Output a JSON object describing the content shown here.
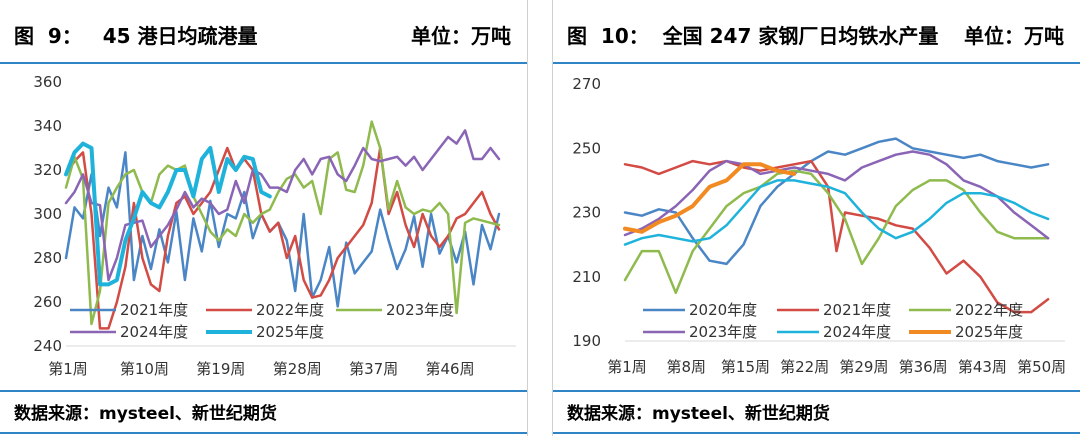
{
  "left": {
    "title": "图  9：   45 港日均疏港量",
    "unit": "单位：万吨",
    "source": "数据来源：mysteel、新世纪期货"
  },
  "right": {
    "title": "图  10：  全国 247 家钢厂日均铁水产量",
    "unit": "单位：万吨",
    "source": "数据来源：mysteel、新世纪期货"
  },
  "chart_data": [
    {
      "type": "line",
      "title": "",
      "xlabel": "",
      "ylabel": "",
      "ylim": [
        240,
        360
      ],
      "y_ticks": [
        240,
        260,
        280,
        300,
        320,
        340,
        360
      ],
      "x_ticks": [
        1,
        10,
        19,
        28,
        37,
        46
      ],
      "x_tick_labels": [
        "第1周",
        "第10周",
        "第19周",
        "第28周",
        "第37周",
        "第46周"
      ],
      "x_range": [
        1,
        54
      ],
      "grid": false,
      "legend_position": "bottom-left",
      "series": [
        {
          "name": "2021年度",
          "color": "#4a86c6",
          "width": 2.5,
          "x": [
            1,
            2,
            3,
            4,
            5,
            6,
            7,
            8,
            9,
            10,
            11,
            12,
            13,
            14,
            15,
            16,
            17,
            18,
            19,
            20,
            21,
            22,
            23,
            24,
            25,
            26,
            27,
            28,
            29,
            30,
            31,
            32,
            33,
            34,
            35,
            36,
            37,
            38,
            39,
            40,
            41,
            42,
            43,
            44,
            45,
            46,
            47,
            48,
            49,
            50,
            51,
            52
          ],
          "y": [
            280,
            303,
            298,
            318,
            290,
            312,
            303,
            328,
            270,
            290,
            275,
            293,
            278,
            301,
            270,
            298,
            283,
            306,
            285,
            300,
            298,
            310,
            289,
            300,
            292,
            296,
            288,
            265,
            300,
            262,
            270,
            285,
            258,
            287,
            273,
            278,
            283,
            302,
            288,
            275,
            284,
            299,
            276,
            300,
            282,
            290,
            278,
            292,
            268,
            295,
            284,
            300
          ]
        },
        {
          "name": "2022年度",
          "color": "#d24b44",
          "width": 2.5,
          "x": [
            1,
            2,
            3,
            4,
            5,
            6,
            7,
            8,
            9,
            10,
            11,
            12,
            13,
            14,
            15,
            16,
            17,
            18,
            19,
            20,
            21,
            22,
            23,
            24,
            25,
            26,
            27,
            28,
            29,
            30,
            31,
            32,
            33,
            34,
            35,
            36,
            37,
            38,
            39,
            40,
            41,
            42,
            43,
            44,
            45,
            46,
            47,
            48,
            49,
            50,
            51,
            52
          ],
          "y": [
            318,
            324,
            328,
            300,
            248,
            248,
            260,
            276,
            305,
            280,
            268,
            265,
            290,
            305,
            308,
            300,
            305,
            310,
            320,
            330,
            320,
            325,
            320,
            300,
            292,
            296,
            280,
            290,
            270,
            262,
            263,
            270,
            280,
            285,
            290,
            295,
            305,
            330,
            300,
            310,
            295,
            285,
            300,
            290,
            285,
            290,
            298,
            300,
            305,
            310,
            300,
            293
          ]
        },
        {
          "name": "2023年度",
          "color": "#8fba4e",
          "width": 2.5,
          "x": [
            1,
            2,
            3,
            4,
            5,
            6,
            7,
            8,
            9,
            10,
            11,
            12,
            13,
            14,
            15,
            16,
            17,
            18,
            19,
            20,
            21,
            22,
            23,
            24,
            25,
            26,
            27,
            28,
            29,
            30,
            31,
            32,
            33,
            34,
            35,
            36,
            37,
            38,
            39,
            40,
            41,
            42,
            43,
            44,
            45,
            46,
            47,
            48,
            49,
            50,
            51,
            52
          ],
          "y": [
            312,
            326,
            316,
            250,
            265,
            305,
            312,
            318,
            320,
            310,
            305,
            318,
            322,
            320,
            322,
            308,
            300,
            292,
            288,
            293,
            290,
            300,
            296,
            300,
            302,
            310,
            316,
            318,
            312,
            315,
            300,
            325,
            328,
            311,
            310,
            322,
            342,
            330,
            302,
            315,
            303,
            300,
            302,
            301,
            305,
            300,
            255,
            296,
            298,
            297,
            296,
            295
          ]
        },
        {
          "name": "2024年度",
          "color": "#8a65b5",
          "width": 2.5,
          "x": [
            1,
            2,
            3,
            4,
            5,
            6,
            7,
            8,
            9,
            10,
            11,
            12,
            13,
            14,
            15,
            16,
            17,
            18,
            19,
            20,
            21,
            22,
            23,
            24,
            25,
            26,
            27,
            28,
            29,
            30,
            31,
            32,
            33,
            34,
            35,
            36,
            37,
            38,
            39,
            40,
            41,
            42,
            43,
            44,
            45,
            46,
            47,
            48,
            49,
            50,
            51,
            52
          ],
          "y": [
            305,
            310,
            318,
            305,
            304,
            270,
            280,
            295,
            296,
            297,
            285,
            290,
            295,
            302,
            310,
            303,
            307,
            305,
            300,
            302,
            315,
            305,
            320,
            318,
            312,
            312,
            310,
            320,
            325,
            318,
            325,
            326,
            318,
            315,
            322,
            330,
            325,
            324,
            325,
            326,
            322,
            326,
            320,
            325,
            330,
            335,
            332,
            338,
            325,
            325,
            330,
            325
          ]
        },
        {
          "name": "2025年度",
          "color": "#1fb3db",
          "width": 4,
          "x": [
            1,
            2,
            3,
            4,
            5,
            6,
            7,
            8,
            9,
            10,
            11,
            12,
            13,
            14,
            15,
            16,
            17,
            18,
            19,
            20,
            21,
            22,
            23,
            24,
            25
          ],
          "y": [
            318,
            328,
            332,
            330,
            268,
            268,
            270,
            288,
            298,
            310,
            305,
            303,
            310,
            320,
            320,
            308,
            325,
            330,
            310,
            325,
            320,
            326,
            325,
            310,
            308
          ]
        }
      ]
    },
    {
      "type": "line",
      "title": "",
      "xlabel": "",
      "ylabel": "",
      "ylim": [
        190,
        270
      ],
      "y_ticks": [
        190,
        210,
        230,
        250,
        270
      ],
      "x_ticks": [
        1,
        8,
        15,
        22,
        29,
        36,
        43,
        50
      ],
      "x_tick_labels": [
        "第1周",
        "第8周",
        "第15周",
        "第22周",
        "第29周",
        "第36周",
        "第43周",
        "第50周"
      ],
      "x_range": [
        1,
        53
      ],
      "grid": false,
      "legend_position": "bottom",
      "series": [
        {
          "name": "2020年度",
          "color": "#4a86c6",
          "width": 2.5,
          "x": [
            1,
            3,
            5,
            7,
            9,
            11,
            13,
            15,
            17,
            19,
            21,
            23,
            25,
            27,
            29,
            31,
            33,
            35,
            37,
            39,
            41,
            43,
            45,
            47,
            49,
            51
          ],
          "y": [
            230,
            229,
            231,
            230,
            222,
            215,
            214,
            220,
            232,
            238,
            242,
            246,
            249,
            248,
            250,
            252,
            253,
            250,
            249,
            248,
            247,
            248,
            246,
            245,
            244,
            245
          ]
        },
        {
          "name": "2021年度",
          "color": "#d24b44",
          "width": 2.5,
          "x": [
            1,
            3,
            5,
            7,
            9,
            11,
            13,
            15,
            17,
            19,
            21,
            23,
            25,
            26,
            27,
            29,
            31,
            33,
            35,
            37,
            39,
            41,
            43,
            45,
            47,
            49,
            51
          ],
          "y": [
            245,
            244,
            242,
            244,
            246,
            245,
            246,
            244,
            243,
            244,
            245,
            246,
            238,
            218,
            230,
            229,
            228,
            226,
            225,
            219,
            211,
            215,
            210,
            202,
            199,
            199,
            203
          ]
        },
        {
          "name": "2022年度",
          "color": "#8fba4e",
          "width": 2.5,
          "x": [
            1,
            3,
            5,
            7,
            9,
            11,
            13,
            15,
            17,
            19,
            21,
            23,
            25,
            27,
            29,
            31,
            33,
            35,
            37,
            39,
            41,
            43,
            45,
            47,
            49,
            51
          ],
          "y": [
            209,
            218,
            218,
            205,
            218,
            225,
            232,
            236,
            238,
            242,
            243,
            242,
            236,
            228,
            214,
            222,
            232,
            237,
            240,
            240,
            237,
            230,
            224,
            222,
            222,
            222
          ]
        },
        {
          "name": "2023年度",
          "color": "#8a65b5",
          "width": 2.5,
          "x": [
            1,
            3,
            5,
            7,
            9,
            11,
            13,
            15,
            17,
            19,
            21,
            23,
            25,
            27,
            29,
            31,
            33,
            35,
            37,
            39,
            41,
            43,
            45,
            47,
            49,
            51
          ],
          "y": [
            223,
            225,
            228,
            232,
            237,
            243,
            246,
            245,
            242,
            243,
            244,
            243,
            242,
            240,
            244,
            246,
            248,
            249,
            248,
            245,
            240,
            238,
            235,
            230,
            226,
            222
          ]
        },
        {
          "name": "2024年度",
          "color": "#1fb3db",
          "width": 2.5,
          "x": [
            1,
            3,
            5,
            7,
            9,
            11,
            13,
            15,
            17,
            19,
            21,
            23,
            25,
            27,
            29,
            31,
            33,
            35,
            37,
            39,
            41,
            43,
            45,
            47,
            49,
            51
          ],
          "y": [
            220,
            222,
            223,
            222,
            221,
            222,
            226,
            232,
            238,
            240,
            240,
            239,
            238,
            236,
            230,
            225,
            222,
            224,
            228,
            233,
            236,
            236,
            235,
            233,
            230,
            228
          ]
        },
        {
          "name": "2025年度",
          "color": "#f28a22",
          "width": 4,
          "x": [
            1,
            3,
            5,
            7,
            9,
            11,
            13,
            15,
            17,
            19,
            21
          ],
          "y": [
            225,
            224,
            227,
            229,
            232,
            238,
            240,
            245,
            245,
            243,
            242
          ]
        }
      ]
    }
  ]
}
